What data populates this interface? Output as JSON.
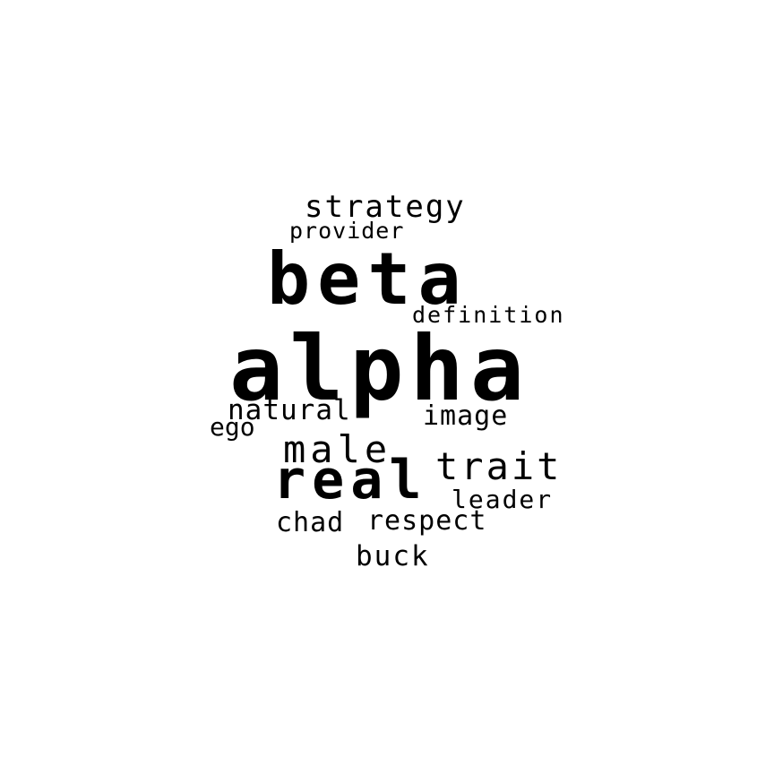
{
  "colors": {
    "background": "#ffffff",
    "text": "#000000"
  },
  "words": [
    {
      "id": "alpha",
      "text": "alpha"
    },
    {
      "id": "beta",
      "text": "beta"
    },
    {
      "id": "real",
      "text": "real"
    },
    {
      "id": "male",
      "text": "male"
    },
    {
      "id": "trait",
      "text": "trait"
    },
    {
      "id": "strategy",
      "text": "strategy"
    },
    {
      "id": "image",
      "text": "image"
    },
    {
      "id": "natural",
      "text": "natural"
    },
    {
      "id": "respect",
      "text": "respect"
    },
    {
      "id": "buck",
      "text": "buck"
    },
    {
      "id": "chad",
      "text": "chad"
    },
    {
      "id": "leader",
      "text": "leader"
    },
    {
      "id": "ego",
      "text": "ego"
    },
    {
      "id": "provider",
      "text": "provider"
    },
    {
      "id": "definition",
      "text": "definition"
    }
  ]
}
